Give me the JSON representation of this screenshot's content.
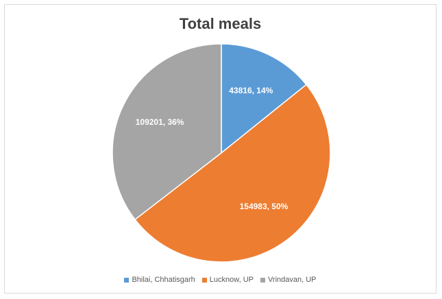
{
  "chart_data": {
    "type": "pie",
    "title": "Total meals",
    "categories": [
      "Bhilai, Chhatisgarh",
      "Lucknow, UP",
      "Vrindavan, UP"
    ],
    "values": [
      43816,
      154983,
      109201
    ],
    "data_labels": [
      "43816, 14%",
      "154983, 50%",
      "109201, 36%"
    ],
    "colors": [
      "#5b9bd5",
      "#ed7d31",
      "#a5a5a5"
    ],
    "legend_position": "bottom"
  }
}
